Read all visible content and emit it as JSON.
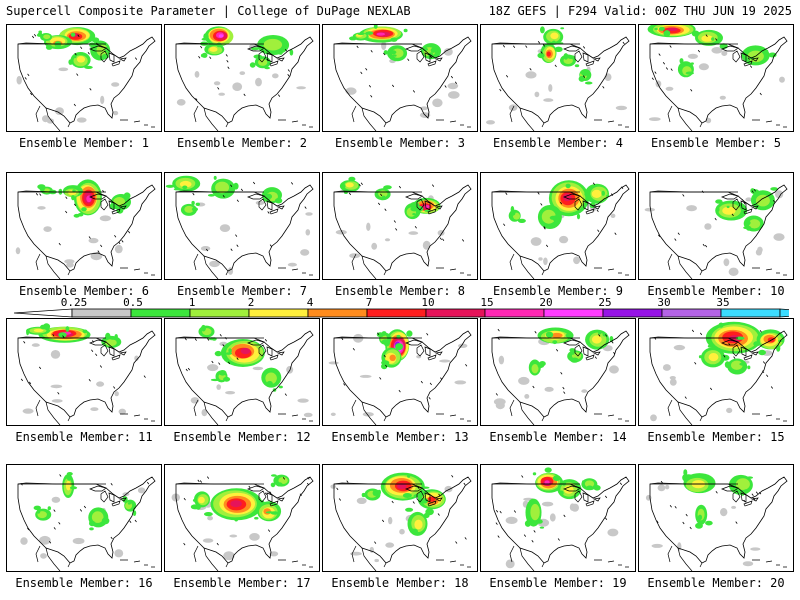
{
  "header": {
    "title": "Supercell Composite Parameter | College of DuPage NEXLAB",
    "run_info": "18Z GEFS | F294 Valid: 00Z THU JUN 19 2025"
  },
  "member_label_prefix": "Ensemble Member: ",
  "members": [
    {
      "label": "Ensemble Member: 1"
    },
    {
      "label": "Ensemble Member: 2"
    },
    {
      "label": "Ensemble Member: 3"
    },
    {
      "label": "Ensemble Member: 4"
    },
    {
      "label": "Ensemble Member: 5"
    },
    {
      "label": "Ensemble Member: 6"
    },
    {
      "label": "Ensemble Member: 7"
    },
    {
      "label": "Ensemble Member: 8"
    },
    {
      "label": "Ensemble Member: 9"
    },
    {
      "label": "Ensemble Member: 10"
    },
    {
      "label": "Ensemble Member: 11"
    },
    {
      "label": "Ensemble Member: 12"
    },
    {
      "label": "Ensemble Member: 13"
    },
    {
      "label": "Ensemble Member: 14"
    },
    {
      "label": "Ensemble Member: 15"
    },
    {
      "label": "Ensemble Member: 16"
    },
    {
      "label": "Ensemble Member: 17"
    },
    {
      "label": "Ensemble Member: 18"
    },
    {
      "label": "Ensemble Member: 19"
    },
    {
      "label": "Ensemble Member: 20"
    }
  ],
  "colorbar": {
    "ticks": [
      "0.25",
      "0.5",
      "1",
      "2",
      "4",
      "7",
      "10",
      "15",
      "20",
      "25",
      "30",
      "35"
    ],
    "colors": [
      "#c8c8c8",
      "#3ce63c",
      "#a0f03c",
      "#fff03c",
      "#ff8c1e",
      "#ff1e1e",
      "#e6145a",
      "#ff28b4",
      "#ff3cff",
      "#9614e6",
      "#b464e6",
      "#3cdcff"
    ]
  }
}
